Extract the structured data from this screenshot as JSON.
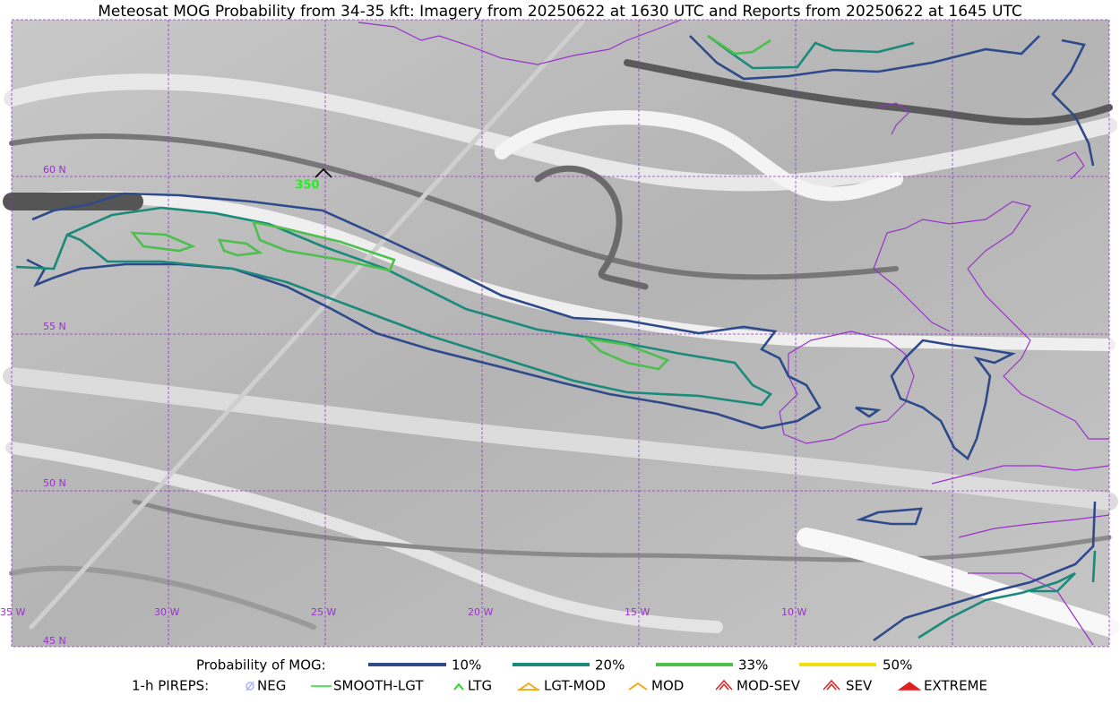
{
  "title": "Meteosat MOG Probability from 34-35 kft: Imagery from 20250622 at 1630 UTC and Reports from 20250622 at 1645 UTC",
  "map": {
    "lat_labels": [
      "60 N",
      "55 N",
      "50 N",
      "45 N"
    ],
    "lon_labels": [
      "35 W",
      "30 W",
      "25 W",
      "20 W",
      "15 W",
      "10 W"
    ],
    "pireps": [
      {
        "label": "350"
      }
    ]
  },
  "legend": {
    "mog_title": "Probability of MOG:",
    "mog_levels": [
      {
        "label": "10%",
        "color": "#2e4a8b"
      },
      {
        "label": "20%",
        "color": "#1a8a7a"
      },
      {
        "label": "33%",
        "color": "#4cc04c"
      },
      {
        "label": "50%",
        "color": "#f0e010"
      }
    ],
    "pirep_title": "1-h PIREPS:",
    "pirep_types": [
      "NEG",
      "SMOOTH-LGT",
      "LTG",
      "LGT-MOD",
      "MOD",
      "MOD-SEV",
      "SEV",
      "EXTREME"
    ]
  }
}
